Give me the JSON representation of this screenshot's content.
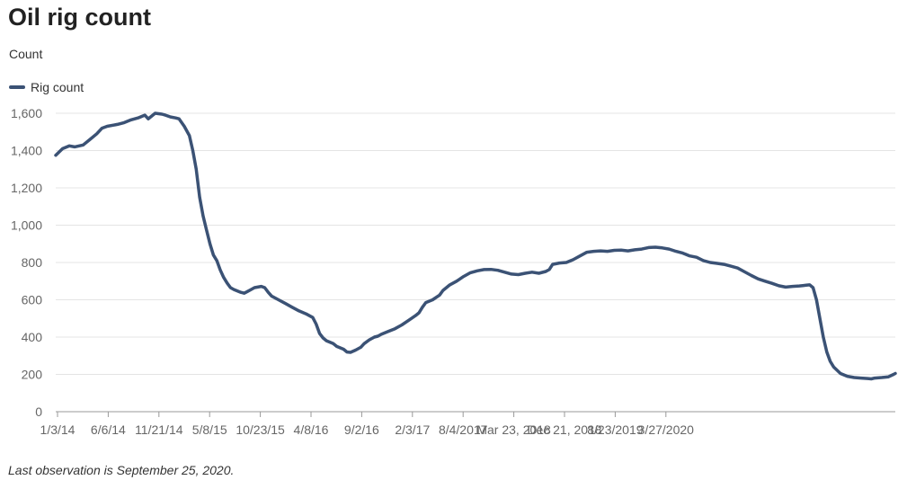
{
  "title": "Oil rig count",
  "y_axis_label": "Count",
  "legend": {
    "label": "Rig count",
    "color": "#3b5275"
  },
  "footnote": "Last observation is September 25, 2020.",
  "chart_data": {
    "type": "line",
    "ylim": [
      0,
      1600
    ],
    "y_ticks": [
      0,
      200,
      400,
      600,
      800,
      1000,
      1200,
      1400,
      1600
    ],
    "y_tick_labels": [
      "0",
      "200",
      "400",
      "600",
      "800",
      "1,000",
      "1,200",
      "1,400",
      "1,600"
    ],
    "x_ticks": [
      "1/3/14",
      "6/6/14",
      "11/21/14",
      "5/8/15",
      "10/23/15",
      "4/8/16",
      "9/2/16",
      "2/3/17",
      "8/4/2017",
      "Mar 23, 2018",
      "Dec 21, 2018",
      "8/23/2019",
      "3/27/2020"
    ],
    "grid": true,
    "legend_position": "top-left",
    "series": [
      {
        "name": "Rig count",
        "color": "#3b5275",
        "points": [
          [
            0,
            1375
          ],
          [
            4,
            1410
          ],
          [
            8,
            1425
          ],
          [
            11,
            1420
          ],
          [
            16,
            1430
          ],
          [
            20,
            1460
          ],
          [
            24,
            1490
          ],
          [
            27,
            1520
          ],
          [
            30,
            1530
          ],
          [
            36,
            1540
          ],
          [
            40,
            1550
          ],
          [
            44,
            1565
          ],
          [
            48,
            1575
          ],
          [
            52,
            1590
          ],
          [
            54,
            1570
          ],
          [
            58,
            1600
          ],
          [
            62,
            1595
          ],
          [
            64,
            1590
          ],
          [
            67,
            1580
          ],
          [
            70,
            1575
          ],
          [
            72,
            1570
          ],
          [
            75,
            1530
          ],
          [
            78,
            1480
          ],
          [
            80,
            1400
          ],
          [
            82,
            1300
          ],
          [
            84,
            1150
          ],
          [
            86,
            1050
          ],
          [
            88,
            975
          ],
          [
            90,
            900
          ],
          [
            92,
            840
          ],
          [
            94,
            810
          ],
          [
            96,
            760
          ],
          [
            98,
            720
          ],
          [
            100,
            690
          ],
          [
            102,
            665
          ],
          [
            104,
            655
          ],
          [
            108,
            640
          ],
          [
            110,
            635
          ],
          [
            112,
            645
          ],
          [
            114,
            655
          ],
          [
            116,
            665
          ],
          [
            120,
            672
          ],
          [
            122,
            665
          ],
          [
            124,
            640
          ],
          [
            126,
            620
          ],
          [
            130,
            600
          ],
          [
            134,
            580
          ],
          [
            138,
            560
          ],
          [
            142,
            540
          ],
          [
            146,
            525
          ],
          [
            150,
            505
          ],
          [
            152,
            470
          ],
          [
            154,
            420
          ],
          [
            156,
            395
          ],
          [
            158,
            380
          ],
          [
            162,
            365
          ],
          [
            164,
            350
          ],
          [
            168,
            335
          ],
          [
            170,
            320
          ],
          [
            172,
            318
          ],
          [
            175,
            330
          ],
          [
            178,
            345
          ],
          [
            180,
            365
          ],
          [
            183,
            385
          ],
          [
            186,
            400
          ],
          [
            188,
            405
          ],
          [
            190,
            415
          ],
          [
            194,
            430
          ],
          [
            198,
            445
          ],
          [
            202,
            465
          ],
          [
            206,
            490
          ],
          [
            210,
            515
          ],
          [
            212,
            530
          ],
          [
            214,
            560
          ],
          [
            216,
            585
          ],
          [
            220,
            600
          ],
          [
            224,
            625
          ],
          [
            226,
            650
          ],
          [
            230,
            680
          ],
          [
            234,
            700
          ],
          [
            238,
            725
          ],
          [
            242,
            745
          ],
          [
            246,
            755
          ],
          [
            250,
            762
          ],
          [
            254,
            763
          ],
          [
            258,
            758
          ],
          [
            262,
            748
          ],
          [
            266,
            738
          ],
          [
            270,
            735
          ],
          [
            274,
            742
          ],
          [
            278,
            748
          ],
          [
            282,
            742
          ],
          [
            286,
            752
          ],
          [
            288,
            762
          ],
          [
            290,
            790
          ],
          [
            294,
            797
          ],
          [
            298,
            800
          ],
          [
            302,
            815
          ],
          [
            306,
            835
          ],
          [
            310,
            855
          ],
          [
            314,
            860
          ],
          [
            318,
            862
          ],
          [
            322,
            860
          ],
          [
            326,
            865
          ],
          [
            330,
            866
          ],
          [
            334,
            862
          ],
          [
            338,
            868
          ],
          [
            342,
            872
          ],
          [
            346,
            880
          ],
          [
            350,
            882
          ],
          [
            354,
            878
          ],
          [
            358,
            872
          ],
          [
            362,
            860
          ],
          [
            366,
            850
          ],
          [
            370,
            835
          ],
          [
            374,
            828
          ],
          [
            378,
            810
          ],
          [
            382,
            800
          ],
          [
            386,
            795
          ],
          [
            390,
            790
          ],
          [
            394,
            780
          ],
          [
            398,
            770
          ],
          [
            402,
            750
          ],
          [
            406,
            730
          ],
          [
            410,
            712
          ],
          [
            414,
            700
          ],
          [
            418,
            688
          ],
          [
            422,
            675
          ],
          [
            426,
            668
          ],
          [
            430,
            672
          ],
          [
            434,
            674
          ],
          [
            436,
            676
          ],
          [
            438,
            678
          ],
          [
            440,
            680
          ],
          [
            442,
            665
          ],
          [
            444,
            600
          ],
          [
            446,
            500
          ],
          [
            448,
            400
          ],
          [
            450,
            320
          ],
          [
            452,
            270
          ],
          [
            454,
            240
          ],
          [
            458,
            205
          ],
          [
            462,
            190
          ],
          [
            466,
            183
          ],
          [
            470,
            180
          ],
          [
            474,
            178
          ],
          [
            476,
            176
          ],
          [
            478,
            180
          ],
          [
            482,
            183
          ],
          [
            486,
            187
          ],
          [
            489,
            200
          ],
          [
            490,
            205
          ]
        ]
      }
    ]
  }
}
